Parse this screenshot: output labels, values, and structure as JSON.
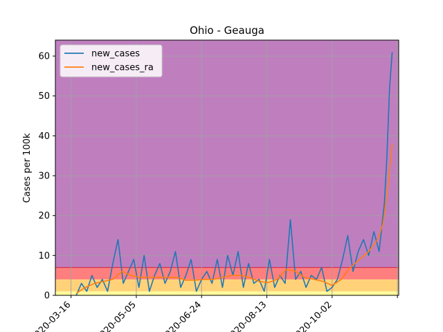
{
  "chart_data": {
    "type": "line",
    "title": "Ohio - Geauga",
    "xlabel": "",
    "ylabel": "Cases per 100k",
    "ylim": [
      0,
      64
    ],
    "xlim": [
      "2020-03-04",
      "2020-11-22"
    ],
    "x_ticks": [
      "2020-03-16",
      "2020-05-05",
      "2020-06-24",
      "2020-08-13",
      "2020-10-02",
      "2020-11-21"
    ],
    "x_tick_labels": [
      "2020-03-16",
      "2020-05-05",
      "2020-06-24",
      "2020-08-13",
      "2020-10-02",
      ""
    ],
    "y_ticks": [
      0,
      10,
      20,
      30,
      40,
      50,
      60
    ],
    "y_tick_labels": [
      "0",
      "10",
      "20",
      "30",
      "40",
      "50",
      "60"
    ],
    "grid": true,
    "legend_position": "top-left",
    "bands": [
      {
        "from": 0,
        "to": 1,
        "color": "#fffa9a"
      },
      {
        "from": 1,
        "to": 4,
        "color": "#ffd27a"
      },
      {
        "from": 4,
        "to": 7,
        "color": "#ff7f7f"
      },
      {
        "from": 7,
        "to": 64,
        "color": "#bf7fbf"
      }
    ],
    "threshold_line": {
      "y": 7,
      "color": "#cc3355"
    },
    "series": [
      {
        "name": "new_cases",
        "color": "#1f77b4",
        "x": [
          "2020-03-20",
          "2020-03-24",
          "2020-03-28",
          "2020-04-01",
          "2020-04-05",
          "2020-04-09",
          "2020-04-13",
          "2020-04-17",
          "2020-04-21",
          "2020-04-25",
          "2020-04-29",
          "2020-05-03",
          "2020-05-07",
          "2020-05-11",
          "2020-05-15",
          "2020-05-19",
          "2020-05-23",
          "2020-05-27",
          "2020-05-31",
          "2020-06-04",
          "2020-06-08",
          "2020-06-12",
          "2020-06-16",
          "2020-06-20",
          "2020-06-24",
          "2020-06-28",
          "2020-07-02",
          "2020-07-06",
          "2020-07-10",
          "2020-07-14",
          "2020-07-18",
          "2020-07-22",
          "2020-07-26",
          "2020-07-30",
          "2020-08-03",
          "2020-08-07",
          "2020-08-11",
          "2020-08-15",
          "2020-08-19",
          "2020-08-23",
          "2020-08-27",
          "2020-08-31",
          "2020-09-04",
          "2020-09-08",
          "2020-09-12",
          "2020-09-16",
          "2020-09-20",
          "2020-09-24",
          "2020-09-28",
          "2020-10-02",
          "2020-10-06",
          "2020-10-10",
          "2020-10-14",
          "2020-10-18",
          "2020-10-22",
          "2020-10-26",
          "2020-10-30",
          "2020-11-03",
          "2020-11-07",
          "2020-11-11",
          "2020-11-13",
          "2020-11-15",
          "2020-11-17"
        ],
        "values": [
          0,
          3,
          1,
          5,
          2,
          4,
          1,
          8,
          14,
          3,
          6,
          9,
          2,
          10,
          1,
          5,
          8,
          3,
          6,
          11,
          2,
          5,
          9,
          1,
          4,
          6,
          3,
          9,
          2,
          10,
          5,
          11,
          2,
          8,
          3,
          4,
          1,
          9,
          2,
          5,
          3,
          19,
          4,
          6,
          2,
          5,
          4,
          7,
          1,
          2,
          4,
          9,
          15,
          6,
          11,
          14,
          10,
          16,
          11,
          23,
          35,
          52,
          61
        ]
      },
      {
        "name": "new_cases_ra",
        "color": "#ff7f0e",
        "x": [
          "2020-03-20",
          "2020-03-27",
          "2020-04-03",
          "2020-04-10",
          "2020-04-17",
          "2020-04-24",
          "2020-05-01",
          "2020-05-08",
          "2020-05-15",
          "2020-05-22",
          "2020-05-29",
          "2020-06-05",
          "2020-06-12",
          "2020-06-19",
          "2020-06-26",
          "2020-07-03",
          "2020-07-10",
          "2020-07-17",
          "2020-07-24",
          "2020-07-31",
          "2020-08-07",
          "2020-08-14",
          "2020-08-21",
          "2020-08-28",
          "2020-09-04",
          "2020-09-11",
          "2020-09-18",
          "2020-09-25",
          "2020-10-02",
          "2020-10-09",
          "2020-10-16",
          "2020-10-23",
          "2020-10-30",
          "2020-11-06",
          "2020-11-10",
          "2020-11-14",
          "2020-11-17"
        ],
        "values": [
          0.5,
          2,
          3,
          3.5,
          4,
          6,
          5,
          4.5,
          4.5,
          4.5,
          4.5,
          4.5,
          3.8,
          3.8,
          4,
          4,
          4.5,
          5,
          5,
          4.5,
          3.5,
          3.2,
          4,
          6.5,
          6,
          4.5,
          4,
          3.5,
          2.5,
          4,
          7,
          9,
          11,
          14,
          18,
          28,
          38
        ]
      }
    ]
  }
}
